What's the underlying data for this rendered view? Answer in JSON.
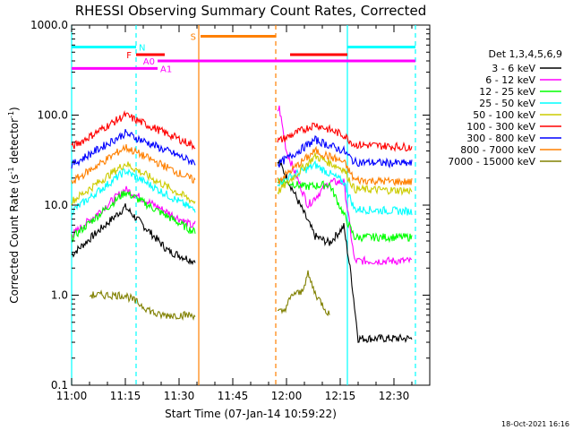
{
  "chart_data": {
    "type": "line",
    "title": "RHESSI Observing Summary Count Rates, Corrected",
    "xlabel": "Start Time (07-Jan-14 10:59:22)",
    "ylabel_main": "Corrected Count Rate (s",
    "ylabel_exp1": "-1",
    "ylabel_mid": " detector",
    "ylabel_exp2": "-1",
    "ylabel_end": ")",
    "yscale": "log",
    "ylim": [
      0.1,
      1000
    ],
    "xlim_minutes": [
      0,
      100
    ],
    "x_tick_labels": [
      "11:00",
      "11:15",
      "11:30",
      "11:45",
      "12:00",
      "12:15",
      "12:30"
    ],
    "x_tick_minutes": [
      0,
      15,
      30,
      45,
      60,
      75,
      90
    ],
    "y_tick_labels": [
      "0.1",
      "1.0",
      "10.0",
      "100.0",
      "1000.0"
    ],
    "y_tick_values": [
      0.1,
      1,
      10,
      100,
      1000
    ],
    "legend_header": "Det 1,3,4,5,6,9",
    "series": [
      {
        "name": "3 - 6 keV",
        "color": "#000000",
        "key_points": [
          [
            0,
            2.8
          ],
          [
            15,
            9.5
          ],
          [
            27,
            3.1
          ],
          [
            34,
            2.4
          ],
          [
            58,
            30
          ],
          [
            68,
            4.5
          ],
          [
            72,
            3.8
          ],
          [
            76,
            5.8
          ],
          [
            78,
            1.7
          ],
          [
            80,
            0.33
          ],
          [
            95,
            0.33
          ]
        ]
      },
      {
        "name": "6 - 12 keV",
        "color": "#ff00ff",
        "key_points": [
          [
            0,
            4.6
          ],
          [
            15,
            15
          ],
          [
            34,
            5.8
          ],
          [
            58,
            120
          ],
          [
            60,
            40
          ],
          [
            66,
            10
          ],
          [
            72,
            18
          ],
          [
            76,
            18
          ],
          [
            79,
            2.4
          ],
          [
            95,
            2.4
          ]
        ]
      },
      {
        "name": "12 - 25 keV",
        "color": "#00ff00",
        "key_points": [
          [
            0,
            4.3
          ],
          [
            15,
            14
          ],
          [
            34,
            5.1
          ],
          [
            58,
            19
          ],
          [
            65,
            16
          ],
          [
            72,
            17
          ],
          [
            77,
            6.5
          ],
          [
            79,
            4.4
          ],
          [
            95,
            4.4
          ]
        ]
      },
      {
        "name": "25 - 50 keV",
        "color": "#00ffff",
        "key_points": [
          [
            0,
            8.5
          ],
          [
            15,
            24
          ],
          [
            34,
            8.9
          ],
          [
            58,
            18
          ],
          [
            68,
            28
          ],
          [
            76,
            18
          ],
          [
            79,
            9
          ],
          [
            95,
            8.5
          ]
        ]
      },
      {
        "name": "50 - 100 keV",
        "color": "#cccc00",
        "key_points": [
          [
            0,
            11
          ],
          [
            15,
            29
          ],
          [
            34,
            11
          ],
          [
            58,
            14.5
          ],
          [
            68,
            35
          ],
          [
            76,
            25
          ],
          [
            79,
            15
          ],
          [
            95,
            14.5
          ]
        ]
      },
      {
        "name": "100 - 300 keV",
        "color": "#ff0000",
        "key_points": [
          [
            0,
            44
          ],
          [
            15,
            100
          ],
          [
            34,
            46
          ],
          [
            58,
            52
          ],
          [
            68,
            79
          ],
          [
            76,
            60
          ],
          [
            79,
            47
          ],
          [
            95,
            44
          ]
        ]
      },
      {
        "name": "300 - 800 keV",
        "color": "#0000ff",
        "key_points": [
          [
            0,
            28
          ],
          [
            15,
            63
          ],
          [
            34,
            30
          ],
          [
            58,
            29
          ],
          [
            68,
            53
          ],
          [
            76,
            40
          ],
          [
            79,
            30
          ],
          [
            95,
            29
          ]
        ]
      },
      {
        "name": "800 - 7000 keV",
        "color": "#ff8000",
        "key_points": [
          [
            0,
            18
          ],
          [
            15,
            44
          ],
          [
            34,
            19
          ],
          [
            58,
            19
          ],
          [
            68,
            40
          ],
          [
            76,
            30
          ],
          [
            79,
            19
          ],
          [
            95,
            18
          ]
        ]
      },
      {
        "name": "7000 - 15000 keV",
        "color": "#808000",
        "key_points": [
          [
            5,
            1.0
          ],
          [
            15,
            1.0
          ],
          [
            24,
            0.6
          ],
          [
            27,
            0.6
          ],
          [
            34,
            0.6
          ],
          [
            59,
            0.65
          ],
          [
            62,
            1.05
          ],
          [
            64,
            1.05
          ],
          [
            66,
            1.7
          ],
          [
            68,
            1.05
          ],
          [
            72,
            0.6
          ]
        ]
      }
    ],
    "flag_bars": [
      {
        "label": "N",
        "color": "#00ffff",
        "segments": [
          [
            0,
            18
          ],
          [
            77,
            96
          ]
        ],
        "y_level": 570
      },
      {
        "label": "F",
        "color": "#ff0000",
        "segments": [
          [
            18,
            26
          ],
          [
            61,
            77
          ]
        ],
        "y_level": 470
      },
      {
        "label": "S",
        "color": "#ff8000",
        "segments": [
          [
            36,
            57
          ]
        ],
        "y_level": 750
      },
      {
        "label": "A0",
        "color": "#ff00ff",
        "segments": [
          [
            24,
            96
          ]
        ],
        "y_level": 400
      },
      {
        "label": "A1",
        "color": "#ff00ff",
        "segments": [
          [
            0,
            24
          ]
        ],
        "y_level": 330
      }
    ],
    "vertical_markers": [
      {
        "minute": 0,
        "color": "#00ffff",
        "style": "solid"
      },
      {
        "minute": 18,
        "color": "#00ffff",
        "style": "dashed"
      },
      {
        "minute": 35.5,
        "color": "#ff8000",
        "style": "solid"
      },
      {
        "minute": 57,
        "color": "#ff8000",
        "style": "dashed"
      },
      {
        "minute": 77,
        "color": "#00ffff",
        "style": "solid"
      },
      {
        "minute": 96,
        "color": "#00ffff",
        "style": "dashed"
      }
    ],
    "gap_minutes": [
      34.5,
      57.5
    ],
    "footer": "18-Oct-2021 16:16"
  }
}
